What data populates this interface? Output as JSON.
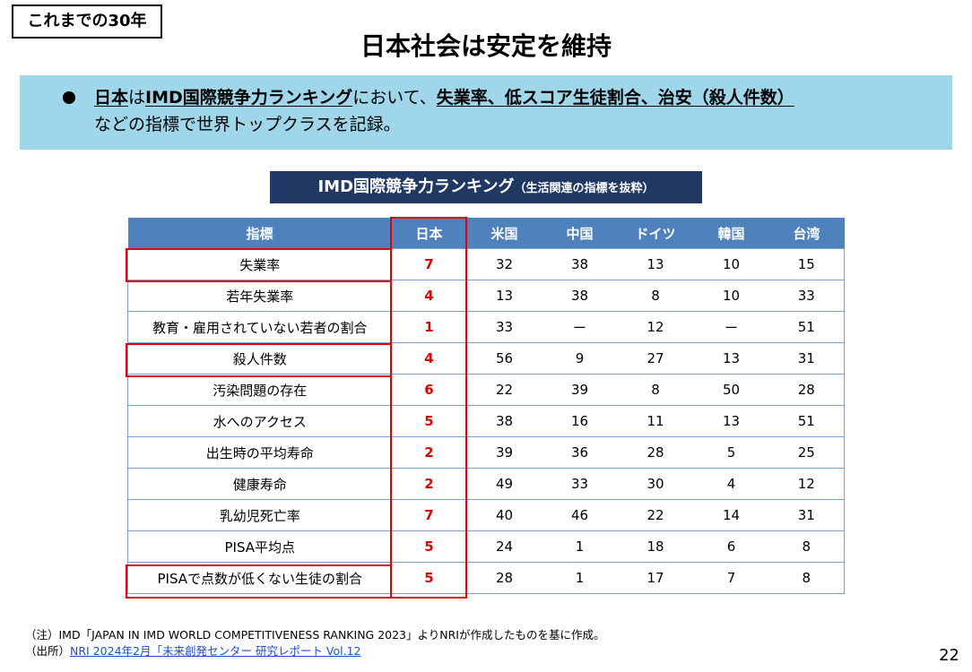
{
  "header": {
    "tag": "これまでの30年",
    "title": "日本社会は安定を維持"
  },
  "banner": {
    "line1": {
      "p1": "日本",
      "p2": "は",
      "p3": "IMD国際競争力ランキング",
      "p4": "において、",
      "p5": "失業率、低スコア生徒割合、治安（殺人件数）"
    },
    "line2": "などの指標で世界トップクラスを記録。"
  },
  "table": {
    "title": "IMD国際競争力ランキング",
    "subtitle": "（生活関連の指標を抜粋）",
    "headers": [
      "指標",
      "日本",
      "米国",
      "中国",
      "ドイツ",
      "韓国",
      "台湾"
    ],
    "rows": [
      [
        "失業率",
        "7",
        "32",
        "38",
        "13",
        "10",
        "15"
      ],
      [
        "若年失業率",
        "4",
        "13",
        "38",
        "8",
        "10",
        "33"
      ],
      [
        "教育・雇用されていない若者の割合",
        "1",
        "33",
        "ー",
        "12",
        "ー",
        "51"
      ],
      [
        "殺人件数",
        "4",
        "56",
        "9",
        "27",
        "13",
        "31"
      ],
      [
        "汚染問題の存在",
        "6",
        "22",
        "39",
        "8",
        "50",
        "28"
      ],
      [
        "水へのアクセス",
        "5",
        "38",
        "16",
        "11",
        "13",
        "51"
      ],
      [
        "出生時の平均寿命",
        "2",
        "39",
        "36",
        "28",
        "5",
        "25"
      ],
      [
        "健康寿命",
        "2",
        "49",
        "33",
        "30",
        "4",
        "12"
      ],
      [
        "乳幼児死亡率",
        "7",
        "40",
        "46",
        "22",
        "14",
        "31"
      ],
      [
        "PISA平均点",
        "5",
        "24",
        "1",
        "18",
        "6",
        "8"
      ],
      [
        "PISAで点数が低くない生徒の割合",
        "5",
        "28",
        "1",
        "17",
        "7",
        "8"
      ]
    ]
  },
  "notes": {
    "note": "（注）IMD「JAPAN IN IMD WORLD COMPETITIVENESS RANKING 2023」よりNRIが作成したものを基に作成。",
    "source_prefix": "（出所）",
    "source_link": "NRI 2024年2月「未来創発センター 研究レポート Vol.12"
  },
  "page_number": "22",
  "colors": {
    "banner": "#9fd6ea",
    "table_title_bg": "#1f3864",
    "header_bg": "#4f81bd",
    "highlight": "#e00000"
  }
}
